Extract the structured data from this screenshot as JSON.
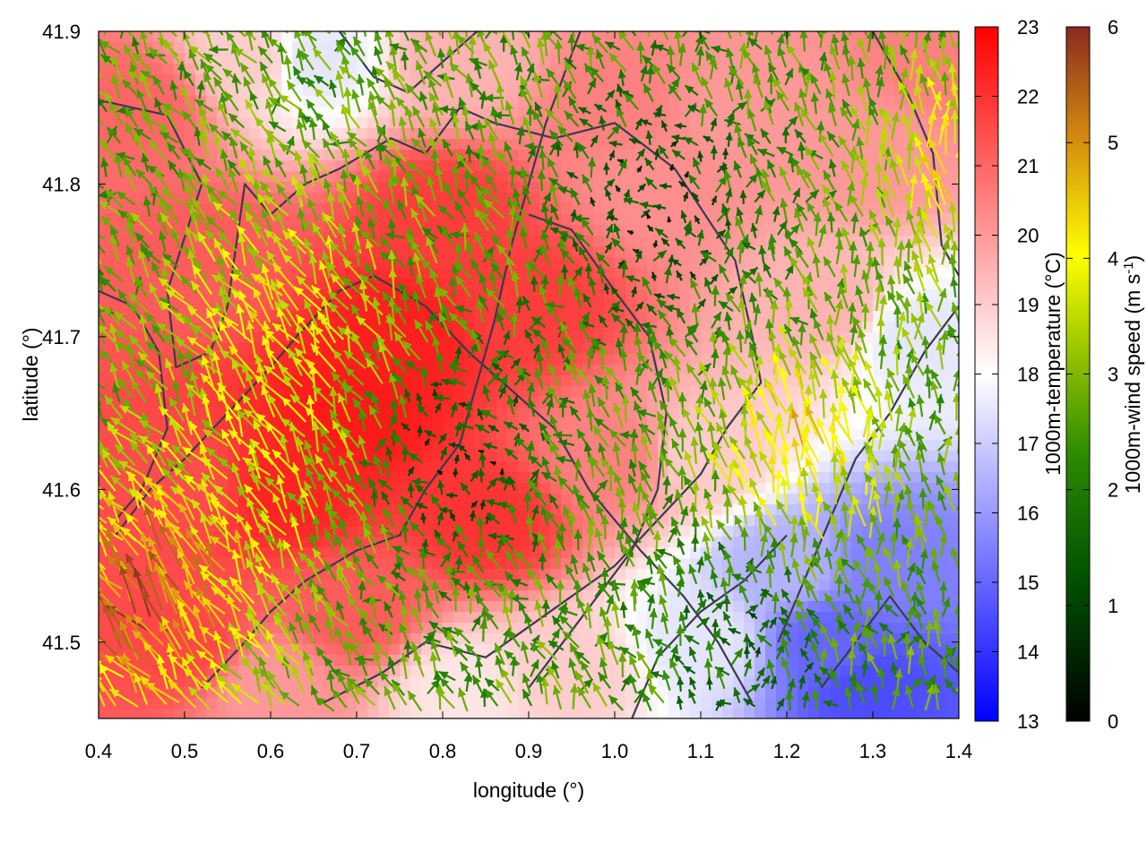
{
  "chart_data": {
    "type": "heatmap",
    "xlabel": "longitude (°)",
    "ylabel": "latitude (°)",
    "xlim": [
      0.4,
      1.4
    ],
    "ylim": [
      41.45,
      41.9
    ],
    "x_ticks": [
      "0.4",
      "0.5",
      "0.6",
      "0.7",
      "0.8",
      "0.9",
      "1.0",
      "1.1",
      "1.2",
      "1.3",
      "1.4"
    ],
    "y_ticks": [
      "41.5",
      "41.6",
      "41.7",
      "41.8",
      "41.9"
    ],
    "temperature": {
      "label": "1000m-temperature (°C)",
      "range": [
        13,
        23
      ],
      "ticks": [
        "13",
        "14",
        "15",
        "16",
        "17",
        "18",
        "19",
        "20",
        "21",
        "22",
        "23"
      ],
      "colors": [
        "#0000ff",
        "#ffffff",
        "#ff0000"
      ]
    },
    "wind": {
      "label_main": "1000m-wind speed (m s",
      "label_sup": "-1",
      "label_end": ")",
      "range": [
        0,
        6
      ],
      "ticks": [
        "0",
        "1",
        "2",
        "3",
        "4",
        "5",
        "6"
      ],
      "colors": [
        "#000000",
        "#005000",
        "#2a8a00",
        "#8fbf00",
        "#ffff00",
        "#d48a10",
        "#8a2a20"
      ]
    },
    "temperature_field_samples": [
      {
        "lon": 0.45,
        "lat": 41.85,
        "t": 21.0
      },
      {
        "lon": 0.52,
        "lat": 41.75,
        "t": 21.2
      },
      {
        "lon": 0.5,
        "lat": 41.6,
        "t": 21.5
      },
      {
        "lon": 0.5,
        "lat": 41.5,
        "t": 21.6
      },
      {
        "lon": 0.62,
        "lat": 41.6,
        "t": 22.3
      },
      {
        "lon": 0.7,
        "lat": 41.65,
        "t": 22.5
      },
      {
        "lon": 0.75,
        "lat": 41.7,
        "t": 22.4
      },
      {
        "lon": 0.8,
        "lat": 41.78,
        "t": 21.8
      },
      {
        "lon": 0.9,
        "lat": 41.72,
        "t": 21.8
      },
      {
        "lon": 0.85,
        "lat": 41.58,
        "t": 22.0
      },
      {
        "lon": 0.7,
        "lat": 41.52,
        "t": 21.2
      },
      {
        "lon": 1.0,
        "lat": 41.85,
        "t": 20.5
      },
      {
        "lon": 1.05,
        "lat": 41.8,
        "t": 20.2
      },
      {
        "lon": 1.15,
        "lat": 41.85,
        "t": 20.0
      },
      {
        "lon": 1.0,
        "lat": 41.62,
        "t": 20.5
      },
      {
        "lon": 0.95,
        "lat": 41.48,
        "t": 19.0
      },
      {
        "lon": 1.1,
        "lat": 41.62,
        "t": 19.0
      },
      {
        "lon": 1.25,
        "lat": 41.72,
        "t": 19.5
      },
      {
        "lon": 1.3,
        "lat": 41.82,
        "t": 20.0
      },
      {
        "lon": 1.38,
        "lat": 41.88,
        "t": 20.5
      },
      {
        "lon": 1.35,
        "lat": 41.7,
        "t": 17.5
      },
      {
        "lon": 1.2,
        "lat": 41.55,
        "t": 16.5
      },
      {
        "lon": 1.25,
        "lat": 41.5,
        "t": 15.0
      },
      {
        "lon": 1.32,
        "lat": 41.55,
        "t": 15.5
      },
      {
        "lon": 1.3,
        "lat": 41.47,
        "t": 14.5
      },
      {
        "lon": 1.1,
        "lat": 41.5,
        "t": 17.5
      },
      {
        "lon": 0.65,
        "lat": 41.88,
        "t": 17.5
      },
      {
        "lon": 0.58,
        "lat": 41.88,
        "t": 19.0
      },
      {
        "lon": 0.82,
        "lat": 41.88,
        "t": 19.5
      },
      {
        "lon": 0.82,
        "lat": 41.47,
        "t": 18.5
      },
      {
        "lon": 0.6,
        "lat": 41.47,
        "t": 20.0
      }
    ],
    "contour_lines": [
      [
        [
          0.4,
          41.855
        ],
        [
          0.48,
          41.845
        ],
        [
          0.52,
          41.8
        ],
        [
          0.48,
          41.73
        ],
        [
          0.49,
          41.68
        ],
        [
          0.53,
          41.69
        ],
        [
          0.55,
          41.72
        ],
        [
          0.57,
          41.8
        ],
        [
          0.6,
          41.78
        ],
        [
          0.64,
          41.8
        ],
        [
          0.68,
          41.81
        ],
        [
          0.74,
          41.83
        ],
        [
          0.78,
          41.82
        ],
        [
          0.82,
          41.85
        ],
        [
          0.86,
          41.84
        ],
        [
          0.93,
          41.83
        ],
        [
          1.0,
          41.84
        ],
        [
          1.07,
          41.81
        ],
        [
          1.14,
          41.75
        ],
        [
          1.16,
          41.7
        ],
        [
          1.17,
          41.67
        ],
        [
          1.13,
          41.64
        ],
        [
          1.1,
          41.61
        ],
        [
          1.05,
          41.58
        ],
        [
          1.0,
          41.55
        ],
        [
          0.95,
          41.53
        ],
        [
          0.9,
          41.51
        ],
        [
          0.85,
          41.49
        ],
        [
          0.78,
          41.5
        ],
        [
          0.73,
          41.48
        ],
        [
          0.66,
          41.46
        ]
      ],
      [
        [
          0.42,
          41.57
        ],
        [
          0.46,
          41.6
        ],
        [
          0.5,
          41.62
        ],
        [
          0.55,
          41.65
        ],
        [
          0.6,
          41.68
        ],
        [
          0.63,
          41.7
        ],
        [
          0.68,
          41.73
        ],
        [
          0.72,
          41.74
        ],
        [
          0.78,
          41.72
        ],
        [
          0.83,
          41.69
        ],
        [
          0.87,
          41.67
        ],
        [
          0.93,
          41.64
        ],
        [
          0.97,
          41.6
        ],
        [
          1.0,
          41.58
        ],
        [
          1.03,
          41.56
        ],
        [
          1.08,
          41.53
        ],
        [
          1.12,
          41.5
        ],
        [
          1.16,
          41.46
        ]
      ],
      [
        [
          0.9,
          41.78
        ],
        [
          0.95,
          41.77
        ],
        [
          1.0,
          41.73
        ],
        [
          1.04,
          41.7
        ],
        [
          1.06,
          41.65
        ],
        [
          1.05,
          41.6
        ],
        [
          1.02,
          41.56
        ],
        [
          0.98,
          41.53
        ],
        [
          0.94,
          41.5
        ],
        [
          0.9,
          41.47
        ]
      ],
      [
        [
          0.52,
          41.47
        ],
        [
          0.57,
          41.5
        ],
        [
          0.6,
          41.52
        ],
        [
          0.64,
          41.54
        ],
        [
          0.7,
          41.56
        ],
        [
          0.75,
          41.57
        ],
        [
          0.78,
          41.6
        ],
        [
          0.82,
          41.63
        ],
        [
          0.84,
          41.67
        ],
        [
          0.86,
          41.71
        ],
        [
          0.88,
          41.76
        ],
        [
          0.9,
          41.8
        ],
        [
          0.92,
          41.84
        ],
        [
          0.94,
          41.87
        ],
        [
          0.96,
          41.9
        ]
      ],
      [
        [
          0.68,
          41.9
        ],
        [
          0.72,
          41.87
        ],
        [
          0.76,
          41.86
        ],
        [
          0.8,
          41.88
        ],
        [
          0.84,
          41.9
        ]
      ],
      [
        [
          1.19,
          41.5
        ],
        [
          1.22,
          41.54
        ],
        [
          1.25,
          41.58
        ],
        [
          1.28,
          41.62
        ],
        [
          1.32,
          41.65
        ],
        [
          1.36,
          41.69
        ],
        [
          1.4,
          41.72
        ]
      ],
      [
        [
          1.24,
          41.47
        ],
        [
          1.28,
          41.5
        ],
        [
          1.32,
          41.53
        ],
        [
          1.36,
          41.5
        ],
        [
          1.4,
          41.48
        ]
      ],
      [
        [
          1.02,
          41.45
        ],
        [
          1.05,
          41.49
        ],
        [
          1.1,
          41.52
        ],
        [
          1.15,
          41.54
        ],
        [
          1.2,
          41.57
        ]
      ],
      [
        [
          1.3,
          41.9
        ],
        [
          1.34,
          41.86
        ],
        [
          1.37,
          41.82
        ],
        [
          1.38,
          41.76
        ],
        [
          1.4,
          41.74
        ]
      ],
      [
        [
          0.4,
          41.73
        ],
        [
          0.44,
          41.72
        ],
        [
          0.47,
          41.69
        ],
        [
          0.48,
          41.64
        ],
        [
          0.45,
          41.6
        ],
        [
          0.42,
          41.58
        ]
      ]
    ]
  }
}
